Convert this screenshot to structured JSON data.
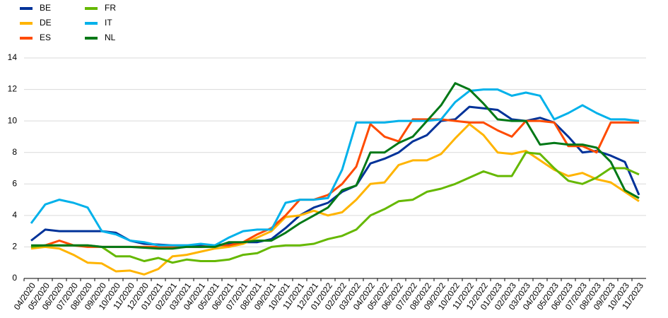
{
  "chart_data": {
    "type": "line",
    "categories": [
      "04/2020",
      "05/2020",
      "06/2020",
      "07/2020",
      "08/2020",
      "09/2020",
      "10/2020",
      "11/2020",
      "12/2020",
      "01/2021",
      "02/2021",
      "03/2021",
      "04/2021",
      "05/2021",
      "06/2021",
      "07/2021",
      "08/2021",
      "09/2021",
      "10/2021",
      "11/2021",
      "12/2021",
      "01/2022",
      "02/2022",
      "03/2022",
      "04/2022",
      "05/2022",
      "06/2022",
      "07/2022",
      "08/2022",
      "09/2022",
      "10/2022",
      "11/2022",
      "12/2022",
      "01/2023",
      "02/2023",
      "03/2023",
      "04/2023",
      "05/2023",
      "06/2023",
      "07/2023",
      "08/2023",
      "09/2023",
      "10/2023",
      "11/2023"
    ],
    "series": [
      {
        "name": "BE",
        "color": "#003299",
        "values": [
          2.4,
          3.1,
          3.0,
          3.0,
          3.0,
          3.0,
          2.9,
          2.4,
          2.2,
          2.15,
          2.1,
          2.1,
          2.1,
          2.1,
          2.2,
          2.3,
          2.3,
          2.5,
          3.2,
          4.0,
          4.5,
          4.8,
          5.5,
          5.9,
          7.3,
          7.6,
          8.0,
          8.7,
          9.1,
          10.0,
          10.1,
          10.9,
          10.8,
          10.7,
          10.1,
          10.0,
          10.2,
          9.9,
          9.0,
          8.0,
          8.1,
          7.8,
          7.4,
          5.3
        ]
      },
      {
        "name": "DE",
        "color": "#ffb400",
        "values": [
          1.9,
          2.0,
          1.9,
          1.5,
          1.0,
          0.95,
          0.45,
          0.5,
          0.25,
          0.6,
          1.4,
          1.5,
          1.7,
          1.9,
          2.0,
          2.2,
          2.6,
          3.0,
          3.9,
          4.0,
          4.3,
          4.0,
          4.2,
          5.0,
          6.0,
          6.1,
          7.2,
          7.5,
          7.5,
          7.9,
          8.9,
          9.8,
          9.1,
          8.0,
          7.9,
          8.1,
          7.5,
          6.9,
          6.5,
          6.7,
          6.3,
          6.1,
          5.5,
          4.9
        ]
      },
      {
        "name": "ES",
        "color": "#ff4b00",
        "values": [
          2.0,
          2.1,
          2.4,
          2.1,
          2.0,
          2.0,
          2.0,
          2.0,
          2.0,
          2.0,
          2.0,
          2.0,
          2.0,
          2.1,
          2.1,
          2.3,
          2.8,
          3.2,
          4.0,
          5.0,
          5.0,
          5.3,
          6.0,
          7.1,
          9.8,
          9.0,
          8.7,
          10.1,
          10.1,
          10.1,
          10.0,
          9.9,
          9.9,
          9.4,
          9.0,
          10.0,
          10.0,
          9.9,
          8.4,
          8.4,
          8.0,
          9.9,
          9.9,
          9.9
        ]
      },
      {
        "name": "FR",
        "color": "#65b800",
        "values": [
          2.0,
          2.1,
          2.1,
          2.1,
          2.1,
          2.0,
          1.4,
          1.4,
          1.1,
          1.3,
          1.0,
          1.2,
          1.1,
          1.1,
          1.2,
          1.5,
          1.6,
          2.0,
          2.1,
          2.1,
          2.2,
          2.5,
          2.7,
          3.1,
          4.0,
          4.4,
          4.9,
          5.0,
          5.5,
          5.7,
          6.0,
          6.4,
          6.8,
          6.5,
          6.5,
          8.0,
          7.9,
          7.0,
          6.2,
          6.0,
          6.4,
          7.0,
          7.0,
          6.6
        ]
      },
      {
        "name": "IT",
        "color": "#00b1ea",
        "values": [
          3.5,
          4.7,
          5.0,
          4.8,
          4.5,
          3.0,
          2.8,
          2.4,
          2.3,
          2.1,
          2.1,
          2.1,
          2.2,
          2.1,
          2.6,
          3.0,
          3.1,
          3.1,
          4.8,
          5.0,
          5.0,
          5.1,
          6.9,
          9.9,
          9.9,
          9.9,
          10.0,
          10.0,
          10.0,
          10.1,
          11.2,
          11.9,
          12.0,
          12.0,
          11.6,
          11.8,
          11.6,
          10.1,
          10.5,
          11.0,
          10.5,
          10.1,
          10.1,
          10.0
        ]
      },
      {
        "name": "NL",
        "color": "#007816",
        "values": [
          2.1,
          2.1,
          2.1,
          2.1,
          2.1,
          2.0,
          2.0,
          2.0,
          1.95,
          1.9,
          1.9,
          2.0,
          2.0,
          2.0,
          2.3,
          2.3,
          2.4,
          2.4,
          2.9,
          3.5,
          4.0,
          4.5,
          5.6,
          5.9,
          8.0,
          8.0,
          8.6,
          9.0,
          10.0,
          11.0,
          12.4,
          12.0,
          11.1,
          10.1,
          10.0,
          10.0,
          8.5,
          8.6,
          8.5,
          8.5,
          8.3,
          7.4,
          5.6,
          5.1
        ]
      }
    ],
    "ylim": [
      0,
      14
    ],
    "yticks": [
      0,
      2,
      4,
      6,
      8,
      10,
      12,
      14
    ],
    "grid": true,
    "legend": "top-left"
  }
}
